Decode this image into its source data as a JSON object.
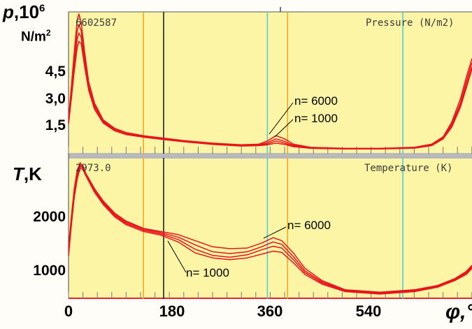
{
  "chart_data": [
    {
      "type": "line",
      "readout": "6602587",
      "title": "Pressure (N/m2)",
      "ylabel": {
        "symbol": "p",
        "unit": ",10",
        "sup": "6",
        "unit2": "N/m",
        "unit2_sup": "2"
      },
      "yticks": [
        "4,5",
        "3,0",
        "1,5"
      ],
      "xlim": [
        0,
        700
      ],
      "ylim": [
        0,
        6.7
      ],
      "xticks": [
        "0",
        "180",
        "360",
        "540"
      ],
      "xlabel": "φ,°",
      "vlines": [
        {
          "x": 130,
          "color": "#f3a72a"
        },
        {
          "x": 165,
          "color": "#222222"
        },
        {
          "x": 345,
          "color": "#4fd0dc"
        },
        {
          "x": 380,
          "color": "#f3a72a"
        },
        {
          "x": 580,
          "color": "#4fd0dc"
        }
      ],
      "annotations": [
        "n= 6000",
        "n= 1000"
      ],
      "series": [
        {
          "x": [
            0,
            5,
            10,
            15,
            18,
            22,
            28,
            35,
            45,
            60,
            80,
            100,
            130,
            160,
            200,
            250,
            300,
            330,
            345,
            360,
            375,
            390,
            420,
            480,
            540,
            600,
            630,
            650,
            665,
            680,
            690,
            700
          ],
          "y": [
            1.6,
            3.2,
            4.8,
            6.3,
            6.6,
            6.2,
            4.8,
            3.4,
            2.4,
            1.6,
            1.2,
            1.0,
            0.85,
            0.75,
            0.62,
            0.5,
            0.42,
            0.45,
            0.6,
            0.85,
            0.7,
            0.45,
            0.3,
            0.25,
            0.25,
            0.3,
            0.45,
            0.8,
            1.5,
            2.6,
            3.6,
            4.5
          ]
        },
        {
          "x": [
            0,
            5,
            10,
            15,
            18,
            22,
            28,
            35,
            45,
            60,
            80,
            100,
            130,
            160,
            200,
            250,
            300,
            330,
            345,
            360,
            375,
            390,
            420,
            480,
            540,
            600,
            630,
            650,
            665,
            680,
            690,
            700
          ],
          "y": [
            1.5,
            3.0,
            4.5,
            5.8,
            6.1,
            5.8,
            4.5,
            3.2,
            2.3,
            1.55,
            1.15,
            0.95,
            0.82,
            0.72,
            0.6,
            0.48,
            0.4,
            0.42,
            0.52,
            0.7,
            0.58,
            0.4,
            0.28,
            0.24,
            0.24,
            0.28,
            0.42,
            0.75,
            1.4,
            2.4,
            3.4,
            4.3
          ]
        },
        {
          "x": [
            0,
            5,
            10,
            15,
            18,
            22,
            28,
            35,
            45,
            60,
            80,
            100,
            130,
            160,
            200,
            250,
            300,
            330,
            345,
            360,
            375,
            390,
            420,
            480,
            540,
            600,
            630,
            650,
            665,
            680,
            690,
            700
          ],
          "y": [
            1.45,
            2.8,
            4.2,
            5.4,
            5.7,
            5.5,
            4.3,
            3.1,
            2.2,
            1.5,
            1.1,
            0.92,
            0.8,
            0.7,
            0.58,
            0.46,
            0.38,
            0.4,
            0.46,
            0.6,
            0.5,
            0.36,
            0.26,
            0.23,
            0.23,
            0.27,
            0.4,
            0.72,
            1.3,
            2.3,
            3.2,
            4.1
          ]
        },
        {
          "x": [
            0,
            5,
            10,
            15,
            18,
            22,
            28,
            35,
            45,
            60,
            80,
            100,
            130,
            160,
            200,
            250,
            300,
            330,
            345,
            360,
            375,
            390,
            420,
            480,
            540,
            600,
            630,
            650,
            665,
            680,
            690,
            700
          ],
          "y": [
            1.4,
            2.6,
            3.9,
            5.0,
            5.3,
            5.2,
            4.1,
            3.0,
            2.1,
            1.45,
            1.08,
            0.9,
            0.78,
            0.68,
            0.56,
            0.44,
            0.36,
            0.38,
            0.42,
            0.5,
            0.44,
            0.33,
            0.25,
            0.22,
            0.22,
            0.26,
            0.38,
            0.7,
            1.25,
            2.2,
            3.1,
            4.0
          ]
        }
      ]
    },
    {
      "type": "line",
      "readout": "2973.0",
      "title": "Temperature (K)",
      "ylabel": {
        "symbol": "T",
        "unit": ",K"
      },
      "yticks": [
        "2000",
        "1000"
      ],
      "xlim": [
        0,
        700
      ],
      "ylim": [
        650,
        2950
      ],
      "xticks": [
        "0",
        "180",
        "360",
        "540"
      ],
      "xlabel": "φ,°",
      "vlines": [
        {
          "x": 130,
          "color": "#f3a72a"
        },
        {
          "x": 165,
          "color": "#222222"
        },
        {
          "x": 345,
          "color": "#4fd0dc"
        },
        {
          "x": 380,
          "color": "#f3a72a"
        },
        {
          "x": 580,
          "color": "#4fd0dc"
        }
      ],
      "annotations": [
        "n= 6000",
        "n= 1000"
      ],
      "series": [
        {
          "x": [
            0,
            5,
            10,
            15,
            20,
            25,
            30,
            45,
            60,
            80,
            100,
            130,
            160,
            190,
            220,
            250,
            280,
            310,
            335,
            355,
            370,
            390,
            410,
            440,
            480,
            540,
            600,
            640,
            670,
            690,
            700
          ],
          "y": [
            1500,
            2000,
            2450,
            2750,
            2870,
            2820,
            2700,
            2450,
            2250,
            2050,
            1920,
            1800,
            1750,
            1700,
            1600,
            1500,
            1470,
            1480,
            1560,
            1650,
            1600,
            1400,
            1150,
            950,
            800,
            760,
            800,
            870,
            980,
            1100,
            1200
          ]
        },
        {
          "x": [
            0,
            5,
            10,
            15,
            20,
            25,
            30,
            45,
            60,
            80,
            100,
            130,
            160,
            190,
            220,
            250,
            280,
            310,
            335,
            355,
            370,
            390,
            410,
            440,
            480,
            540,
            600,
            640,
            670,
            690,
            700
          ],
          "y": [
            1450,
            1950,
            2400,
            2700,
            2840,
            2800,
            2690,
            2430,
            2230,
            2030,
            1900,
            1790,
            1730,
            1660,
            1530,
            1420,
            1390,
            1420,
            1500,
            1580,
            1540,
            1340,
            1110,
            930,
            790,
            750,
            790,
            860,
            970,
            1080,
            1180
          ]
        },
        {
          "x": [
            0,
            5,
            10,
            15,
            20,
            25,
            30,
            45,
            60,
            80,
            100,
            130,
            160,
            190,
            220,
            250,
            280,
            310,
            335,
            355,
            370,
            390,
            410,
            440,
            480,
            540,
            600,
            640,
            670,
            690,
            700
          ],
          "y": [
            1400,
            1900,
            2350,
            2650,
            2810,
            2780,
            2680,
            2410,
            2210,
            2010,
            1880,
            1770,
            1710,
            1620,
            1460,
            1360,
            1330,
            1370,
            1450,
            1510,
            1480,
            1290,
            1080,
            910,
            780,
            740,
            780,
            850,
            960,
            1060,
            1160
          ]
        },
        {
          "x": [
            0,
            5,
            10,
            15,
            20,
            25,
            30,
            45,
            60,
            80,
            100,
            130,
            160,
            190,
            220,
            250,
            280,
            310,
            335,
            355,
            370,
            390,
            410,
            440,
            480,
            540,
            600,
            640,
            670,
            690,
            700
          ],
          "y": [
            1350,
            1850,
            2300,
            2600,
            2780,
            2760,
            2660,
            2390,
            2190,
            1990,
            1860,
            1750,
            1690,
            1580,
            1400,
            1320,
            1290,
            1320,
            1380,
            1430,
            1410,
            1240,
            1050,
            890,
            770,
            730,
            770,
            840,
            950,
            1050,
            1150
          ]
        }
      ]
    }
  ]
}
